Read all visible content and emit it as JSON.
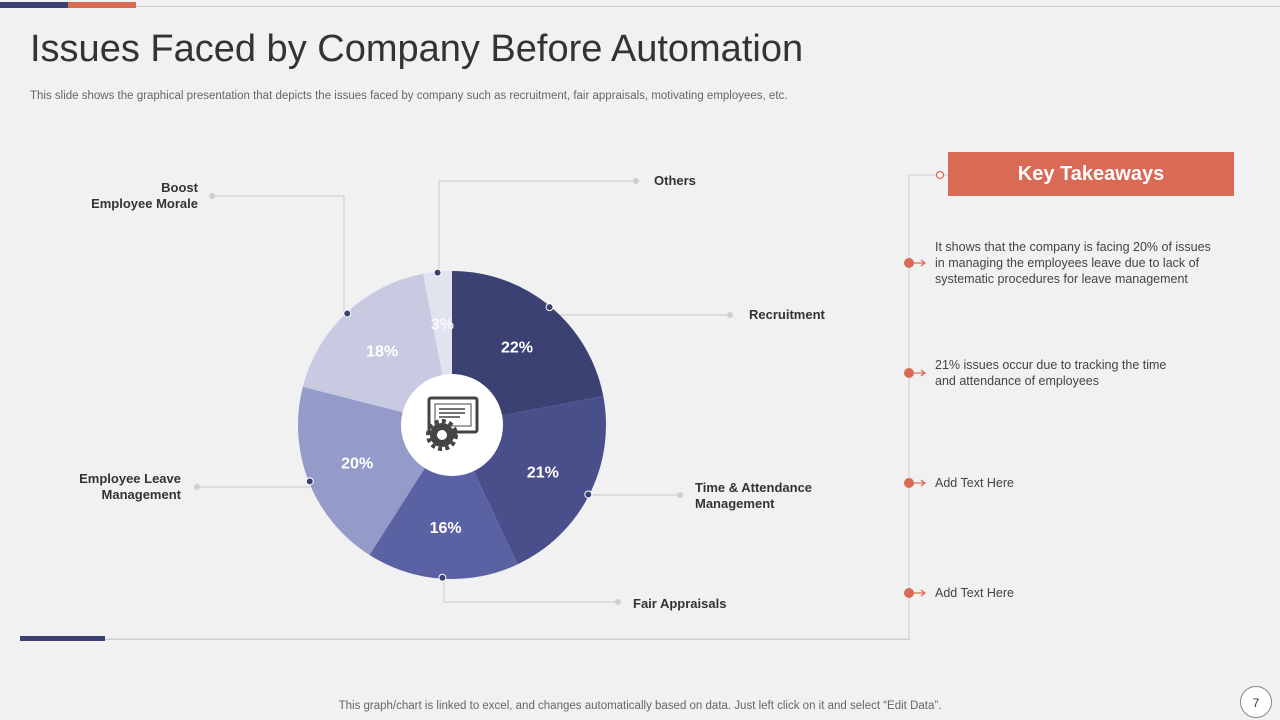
{
  "slide": {
    "title": "Issues Faced by Company Before Automation",
    "subtitle": "This slide shows the graphical presentation that depicts the issues faced by company such as recruitment, fair appraisals, motivating employees, etc.",
    "footer_note": "This graph/chart is linked to excel,  and changes automatically based on data. Just left click on it and select “Edit Data”.",
    "page_number": "7"
  },
  "chart_data": {
    "type": "pie",
    "title": "",
    "center_icon": "computer-settings-icon",
    "categories": [
      "Recruitment",
      "Time & Attendance Management",
      "Fair Appraisals",
      "Employee Leave Management",
      "Boost Employee Morale",
      "Others"
    ],
    "values": [
      22,
      21,
      16,
      20,
      18,
      3
    ],
    "value_labels": [
      "22%",
      "21%",
      "16%",
      "20%",
      "18%",
      "3%"
    ],
    "colors": [
      "#3b4173",
      "#494f8a",
      "#5b62a3",
      "#959bc9",
      "#c7cae0",
      "#e1e3ef"
    ],
    "label_lines": {
      "recruitment": [
        "Recruitment"
      ],
      "time_attendance": [
        "Time & Attendance",
        "Management"
      ],
      "fair_appraisals": [
        "Fair Appraisals"
      ],
      "employee_leave": [
        "Employee Leave",
        "Management"
      ],
      "boost_morale": [
        "Boost",
        "Employee Morale"
      ],
      "others": [
        "Others"
      ]
    }
  },
  "takeaways": {
    "heading": "Key Takeaways",
    "items": [
      {
        "lines": [
          "It shows that the company is facing 20% of issues",
          "in managing the employees leave  due to lack of",
          "systematic procedures for leave  management"
        ]
      },
      {
        "lines": [
          "21% issues occur due to tracking the time",
          "and attendance of employees"
        ]
      },
      {
        "lines": [
          "Add Text Here"
        ]
      },
      {
        "lines": [
          "Add Text Here"
        ]
      }
    ],
    "accent_color": "#d96a55"
  }
}
